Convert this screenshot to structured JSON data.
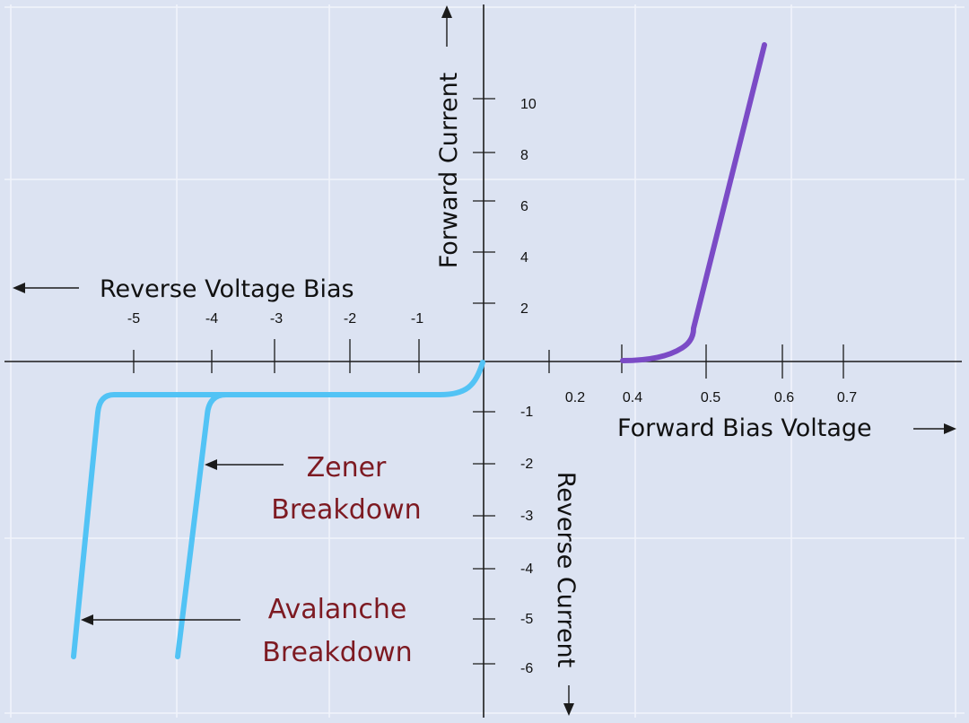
{
  "diagram": {
    "axis_titles": {
      "forward_current": "Forward Current",
      "reverse_current": "Reverse Current",
      "forward_voltage": "Forward Bias Voltage",
      "reverse_voltage": "Reverse Voltage Bias"
    },
    "annotations": {
      "zener_line1": "Zener",
      "zener_line2": "Breakdown",
      "avalanche_line1": "Avalanche",
      "avalanche_line2": "Breakdown"
    },
    "forward_voltage_ticks": [
      "0.2",
      "0.4",
      "0.5",
      "0.6",
      "0.7"
    ],
    "reverse_voltage_ticks": [
      "-5",
      "-4",
      "-3",
      "-2",
      "-1"
    ],
    "forward_current_ticks": [
      "2",
      "4",
      "6",
      "8",
      "10"
    ],
    "reverse_current_ticks": [
      "-1",
      "-2",
      "-3",
      "-4",
      "-5",
      "-6"
    ],
    "colors": {
      "forward_curve": "#7b4bc6",
      "reverse_curve": "#52c3f5",
      "annotation_text": "#7d1a22",
      "background": "#dce3f2"
    }
  }
}
